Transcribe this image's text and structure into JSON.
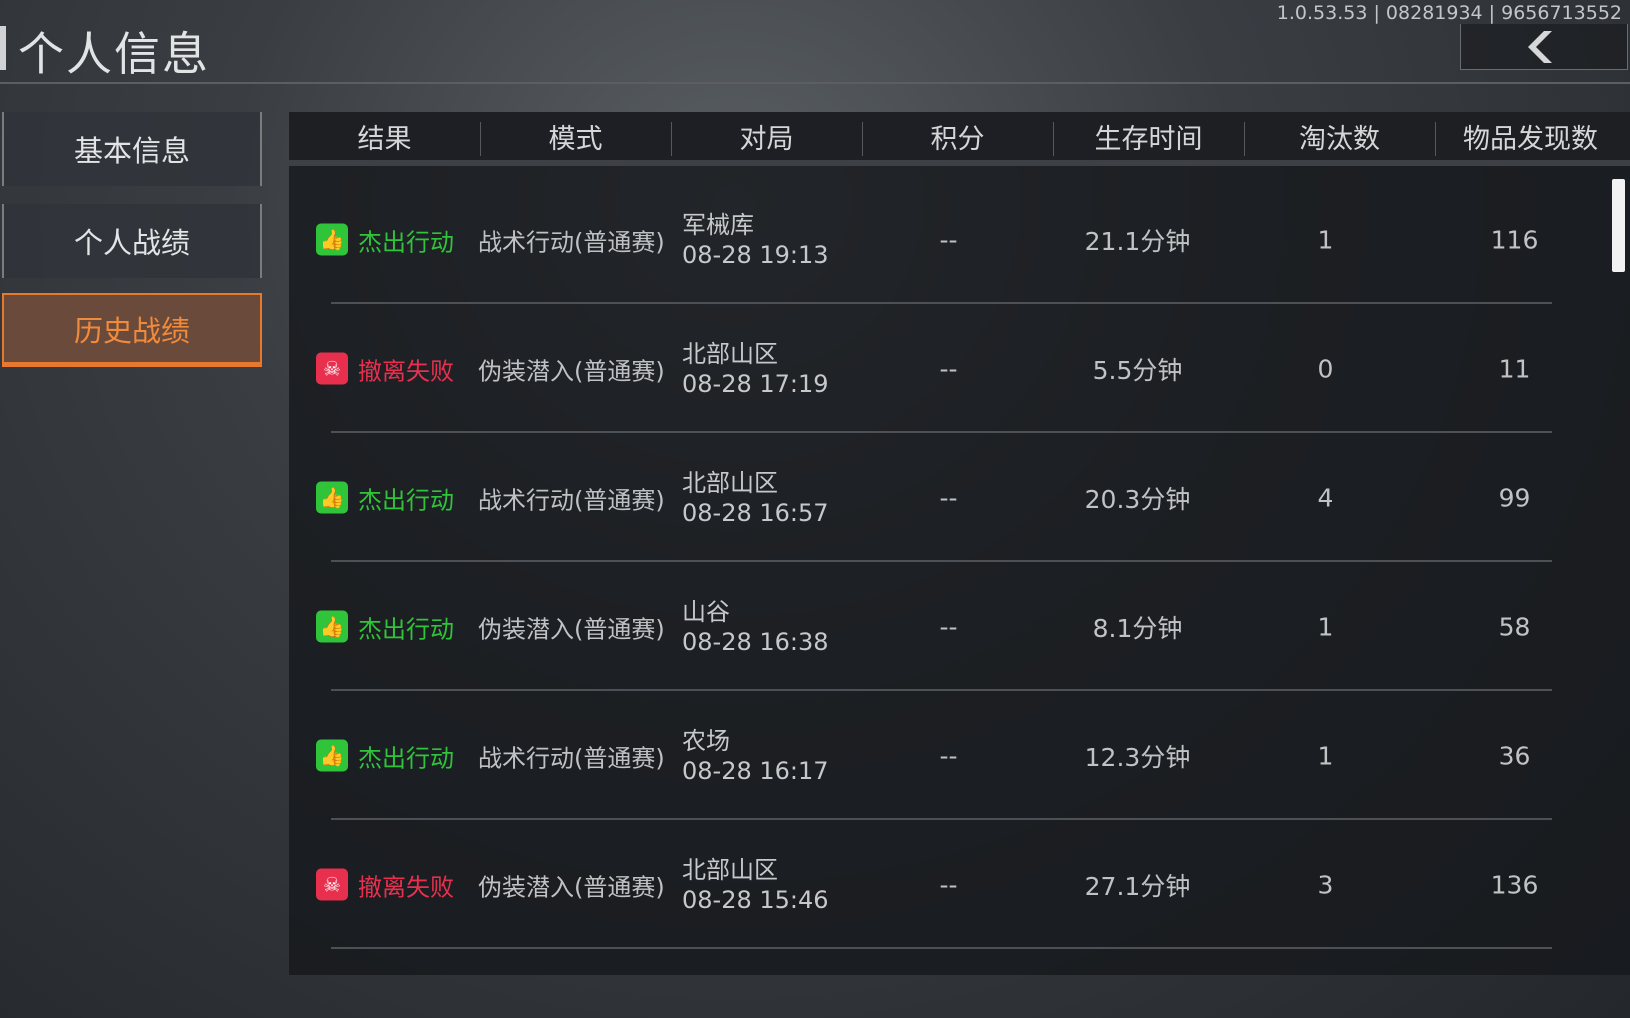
{
  "header": {
    "title": "个人信息",
    "version": "1.0.53.53 | 08281934 | 9656713552"
  },
  "sidebar": {
    "items": [
      {
        "label": "基本信息",
        "active": false
      },
      {
        "label": "个人战绩",
        "active": false
      },
      {
        "label": "历史战绩",
        "active": true
      }
    ]
  },
  "colors": {
    "success": "#2fc43a",
    "fail": "#e8304e",
    "accent": "#f08a3c"
  },
  "table": {
    "columns": [
      "结果",
      "模式",
      "对局",
      "积分",
      "生存时间",
      "淘汰数",
      "物品发现数"
    ],
    "rows": [
      {
        "result": "杰出行动",
        "status": "success",
        "icon": "thumbs-up-icon",
        "mode": "战术行动(普通赛)",
        "map": "军械库",
        "time": "08-28 19:13",
        "score": "--",
        "survival": "21.1分钟",
        "kills": "1",
        "items": "116"
      },
      {
        "result": "撤离失败",
        "status": "fail",
        "icon": "skull-icon",
        "mode": "伪装潜入(普通赛)",
        "map": "北部山区",
        "time": "08-28 17:19",
        "score": "--",
        "survival": "5.5分钟",
        "kills": "0",
        "items": "11"
      },
      {
        "result": "杰出行动",
        "status": "success",
        "icon": "thumbs-up-icon",
        "mode": "战术行动(普通赛)",
        "map": "北部山区",
        "time": "08-28 16:57",
        "score": "--",
        "survival": "20.3分钟",
        "kills": "4",
        "items": "99"
      },
      {
        "result": "杰出行动",
        "status": "success",
        "icon": "thumbs-up-icon",
        "mode": "伪装潜入(普通赛)",
        "map": "山谷",
        "time": "08-28 16:38",
        "score": "--",
        "survival": "8.1分钟",
        "kills": "1",
        "items": "58"
      },
      {
        "result": "杰出行动",
        "status": "success",
        "icon": "thumbs-up-icon",
        "mode": "战术行动(普通赛)",
        "map": "农场",
        "time": "08-28 16:17",
        "score": "--",
        "survival": "12.3分钟",
        "kills": "1",
        "items": "36"
      },
      {
        "result": "撤离失败",
        "status": "fail",
        "icon": "skull-icon",
        "mode": "伪装潜入(普通赛)",
        "map": "北部山区",
        "time": "08-28 15:46",
        "score": "--",
        "survival": "27.1分钟",
        "kills": "3",
        "items": "136"
      }
    ]
  }
}
